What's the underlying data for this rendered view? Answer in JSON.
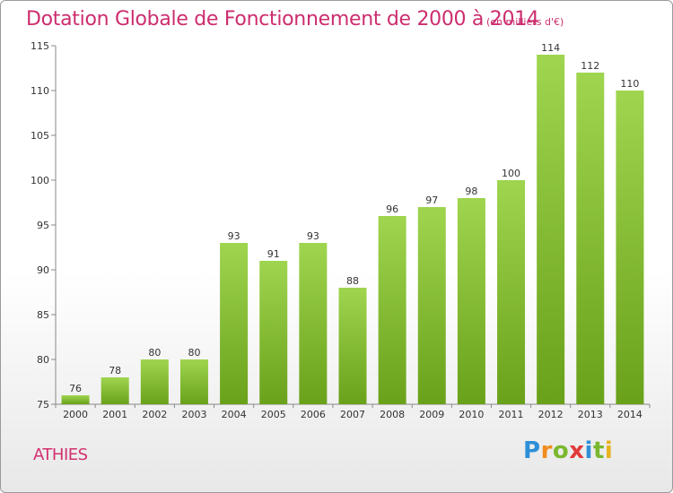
{
  "title": "Dotation Globale de Fonctionnement de 2000 à 2014",
  "subtitle": "(en milliers d'€)",
  "town": "ATHIES",
  "logo": {
    "letters": [
      "P",
      "r",
      "o",
      "x",
      "i",
      "t",
      "i"
    ],
    "colors": [
      "#2e8fd8",
      "#f28c1e",
      "#7ab82e",
      "#e03a3a",
      "#2e8fd8",
      "#7ab82e",
      "#e8b21e"
    ]
  },
  "colors": {
    "bar_top": "#9fd54f",
    "bar_bottom": "#6aa11a",
    "accent": "#cc2d6e"
  },
  "chart_data": {
    "type": "bar",
    "categories": [
      "2000",
      "2001",
      "2002",
      "2003",
      "2004",
      "2005",
      "2006",
      "2007",
      "2008",
      "2009",
      "2010",
      "2011",
      "2012",
      "2013",
      "2014"
    ],
    "values": [
      76,
      78,
      80,
      80,
      93,
      91,
      93,
      88,
      96,
      97,
      98,
      100,
      114,
      112,
      110
    ],
    "value_labels": [
      "76",
      "78",
      "80",
      "80",
      "93",
      "91",
      "93",
      "88",
      "96",
      "97",
      "98",
      "100",
      "114",
      "112",
      "110"
    ],
    "title": "Dotation Globale de Fonctionnement de 2000 à 2014",
    "subtitle": "(en milliers d'€)",
    "xlabel": "",
    "ylabel": "",
    "ylim": [
      75,
      115
    ],
    "yticks": [
      75,
      80,
      85,
      90,
      95,
      100,
      105,
      110,
      115
    ],
    "ytick_labels": [
      "75",
      "80",
      "85",
      "90",
      "95",
      "100",
      "105",
      "110",
      "115"
    ],
    "grid": false
  }
}
